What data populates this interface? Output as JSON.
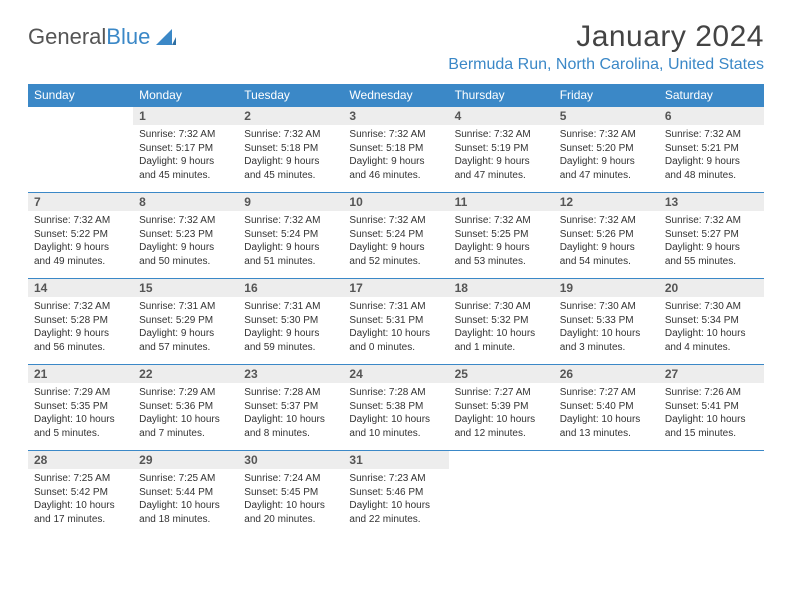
{
  "logo": {
    "word1": "General",
    "word2": "Blue"
  },
  "header": {
    "month_title": "January 2024",
    "location": "Bermuda Run, North Carolina, United States"
  },
  "colors": {
    "accent": "#3b88c7",
    "header_bg": "#3b88c7",
    "header_text": "#ffffff",
    "daynum_bg": "#ededed",
    "text": "#333333",
    "background": "#ffffff"
  },
  "day_names": [
    "Sunday",
    "Monday",
    "Tuesday",
    "Wednesday",
    "Thursday",
    "Friday",
    "Saturday"
  ],
  "weeks": [
    [
      {
        "num": "",
        "sunrise": "",
        "sunset": "",
        "daylight": ""
      },
      {
        "num": "1",
        "sunrise": "Sunrise: 7:32 AM",
        "sunset": "Sunset: 5:17 PM",
        "daylight": "Daylight: 9 hours and 45 minutes."
      },
      {
        "num": "2",
        "sunrise": "Sunrise: 7:32 AM",
        "sunset": "Sunset: 5:18 PM",
        "daylight": "Daylight: 9 hours and 45 minutes."
      },
      {
        "num": "3",
        "sunrise": "Sunrise: 7:32 AM",
        "sunset": "Sunset: 5:18 PM",
        "daylight": "Daylight: 9 hours and 46 minutes."
      },
      {
        "num": "4",
        "sunrise": "Sunrise: 7:32 AM",
        "sunset": "Sunset: 5:19 PM",
        "daylight": "Daylight: 9 hours and 47 minutes."
      },
      {
        "num": "5",
        "sunrise": "Sunrise: 7:32 AM",
        "sunset": "Sunset: 5:20 PM",
        "daylight": "Daylight: 9 hours and 47 minutes."
      },
      {
        "num": "6",
        "sunrise": "Sunrise: 7:32 AM",
        "sunset": "Sunset: 5:21 PM",
        "daylight": "Daylight: 9 hours and 48 minutes."
      }
    ],
    [
      {
        "num": "7",
        "sunrise": "Sunrise: 7:32 AM",
        "sunset": "Sunset: 5:22 PM",
        "daylight": "Daylight: 9 hours and 49 minutes."
      },
      {
        "num": "8",
        "sunrise": "Sunrise: 7:32 AM",
        "sunset": "Sunset: 5:23 PM",
        "daylight": "Daylight: 9 hours and 50 minutes."
      },
      {
        "num": "9",
        "sunrise": "Sunrise: 7:32 AM",
        "sunset": "Sunset: 5:24 PM",
        "daylight": "Daylight: 9 hours and 51 minutes."
      },
      {
        "num": "10",
        "sunrise": "Sunrise: 7:32 AM",
        "sunset": "Sunset: 5:24 PM",
        "daylight": "Daylight: 9 hours and 52 minutes."
      },
      {
        "num": "11",
        "sunrise": "Sunrise: 7:32 AM",
        "sunset": "Sunset: 5:25 PM",
        "daylight": "Daylight: 9 hours and 53 minutes."
      },
      {
        "num": "12",
        "sunrise": "Sunrise: 7:32 AM",
        "sunset": "Sunset: 5:26 PM",
        "daylight": "Daylight: 9 hours and 54 minutes."
      },
      {
        "num": "13",
        "sunrise": "Sunrise: 7:32 AM",
        "sunset": "Sunset: 5:27 PM",
        "daylight": "Daylight: 9 hours and 55 minutes."
      }
    ],
    [
      {
        "num": "14",
        "sunrise": "Sunrise: 7:32 AM",
        "sunset": "Sunset: 5:28 PM",
        "daylight": "Daylight: 9 hours and 56 minutes."
      },
      {
        "num": "15",
        "sunrise": "Sunrise: 7:31 AM",
        "sunset": "Sunset: 5:29 PM",
        "daylight": "Daylight: 9 hours and 57 minutes."
      },
      {
        "num": "16",
        "sunrise": "Sunrise: 7:31 AM",
        "sunset": "Sunset: 5:30 PM",
        "daylight": "Daylight: 9 hours and 59 minutes."
      },
      {
        "num": "17",
        "sunrise": "Sunrise: 7:31 AM",
        "sunset": "Sunset: 5:31 PM",
        "daylight": "Daylight: 10 hours and 0 minutes."
      },
      {
        "num": "18",
        "sunrise": "Sunrise: 7:30 AM",
        "sunset": "Sunset: 5:32 PM",
        "daylight": "Daylight: 10 hours and 1 minute."
      },
      {
        "num": "19",
        "sunrise": "Sunrise: 7:30 AM",
        "sunset": "Sunset: 5:33 PM",
        "daylight": "Daylight: 10 hours and 3 minutes."
      },
      {
        "num": "20",
        "sunrise": "Sunrise: 7:30 AM",
        "sunset": "Sunset: 5:34 PM",
        "daylight": "Daylight: 10 hours and 4 minutes."
      }
    ],
    [
      {
        "num": "21",
        "sunrise": "Sunrise: 7:29 AM",
        "sunset": "Sunset: 5:35 PM",
        "daylight": "Daylight: 10 hours and 5 minutes."
      },
      {
        "num": "22",
        "sunrise": "Sunrise: 7:29 AM",
        "sunset": "Sunset: 5:36 PM",
        "daylight": "Daylight: 10 hours and 7 minutes."
      },
      {
        "num": "23",
        "sunrise": "Sunrise: 7:28 AM",
        "sunset": "Sunset: 5:37 PM",
        "daylight": "Daylight: 10 hours and 8 minutes."
      },
      {
        "num": "24",
        "sunrise": "Sunrise: 7:28 AM",
        "sunset": "Sunset: 5:38 PM",
        "daylight": "Daylight: 10 hours and 10 minutes."
      },
      {
        "num": "25",
        "sunrise": "Sunrise: 7:27 AM",
        "sunset": "Sunset: 5:39 PM",
        "daylight": "Daylight: 10 hours and 12 minutes."
      },
      {
        "num": "26",
        "sunrise": "Sunrise: 7:27 AM",
        "sunset": "Sunset: 5:40 PM",
        "daylight": "Daylight: 10 hours and 13 minutes."
      },
      {
        "num": "27",
        "sunrise": "Sunrise: 7:26 AM",
        "sunset": "Sunset: 5:41 PM",
        "daylight": "Daylight: 10 hours and 15 minutes."
      }
    ],
    [
      {
        "num": "28",
        "sunrise": "Sunrise: 7:25 AM",
        "sunset": "Sunset: 5:42 PM",
        "daylight": "Daylight: 10 hours and 17 minutes."
      },
      {
        "num": "29",
        "sunrise": "Sunrise: 7:25 AM",
        "sunset": "Sunset: 5:44 PM",
        "daylight": "Daylight: 10 hours and 18 minutes."
      },
      {
        "num": "30",
        "sunrise": "Sunrise: 7:24 AM",
        "sunset": "Sunset: 5:45 PM",
        "daylight": "Daylight: 10 hours and 20 minutes."
      },
      {
        "num": "31",
        "sunrise": "Sunrise: 7:23 AM",
        "sunset": "Sunset: 5:46 PM",
        "daylight": "Daylight: 10 hours and 22 minutes."
      },
      {
        "num": "",
        "sunrise": "",
        "sunset": "",
        "daylight": ""
      },
      {
        "num": "",
        "sunrise": "",
        "sunset": "",
        "daylight": ""
      },
      {
        "num": "",
        "sunrise": "",
        "sunset": "",
        "daylight": ""
      }
    ]
  ]
}
